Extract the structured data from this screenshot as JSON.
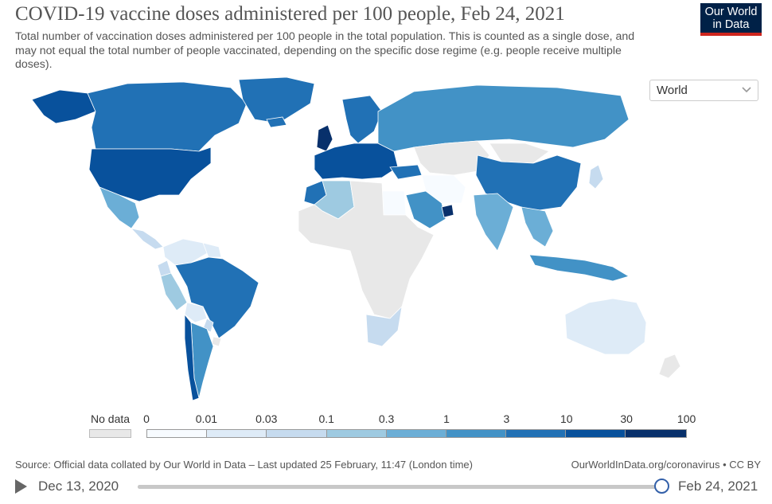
{
  "header": {
    "title": "COVID-19 vaccine doses administered per 100 people, Feb 24, 2021",
    "subtitle": "Total number of vaccination doses administered per 100 people in the total population. This is counted as a single dose, and may not equal the total number of people vaccinated, depending on the specific dose regime (e.g. people receive multiple doses).",
    "logo_line1": "Our World",
    "logo_line2": "in Data"
  },
  "region_select": {
    "value": "World",
    "icon": "chevron-down-icon"
  },
  "legend": {
    "no_data_label": "No data",
    "no_data_color": "#e8e8e8",
    "ticks": [
      "0",
      "0.01",
      "0.03",
      "0.1",
      "0.3",
      "1",
      "3",
      "10",
      "30",
      "100"
    ],
    "colors": [
      "#f7fbff",
      "#deebf7",
      "#c6dbef",
      "#9ecae1",
      "#6baed6",
      "#4292c6",
      "#2171b5",
      "#08519c",
      "#08306b"
    ]
  },
  "map": {
    "regions": [
      {
        "name": "Canada",
        "bin": 6
      },
      {
        "name": "Alaska",
        "bin": 7
      },
      {
        "name": "Greenland",
        "bin": 6
      },
      {
        "name": "United States",
        "bin": 7
      },
      {
        "name": "Mexico",
        "bin": 4
      },
      {
        "name": "Central America",
        "bin": 2
      },
      {
        "name": "Colombia / Venezuela",
        "bin": 1
      },
      {
        "name": "Ecuador",
        "bin": 2
      },
      {
        "name": "Peru",
        "bin": 3
      },
      {
        "name": "Brazil",
        "bin": 6
      },
      {
        "name": "Bolivia",
        "bin": 1
      },
      {
        "name": "Paraguay",
        "bin": 2
      },
      {
        "name": "Argentina",
        "bin": 5
      },
      {
        "name": "Chile",
        "bin": 7
      },
      {
        "name": "Uruguay",
        "bin": -1
      },
      {
        "name": "Guianas",
        "bin": 1
      },
      {
        "name": "Russia",
        "bin": 5
      },
      {
        "name": "Europe (West)",
        "bin": 7
      },
      {
        "name": "United Kingdom",
        "bin": 8
      },
      {
        "name": "Scandinavia",
        "bin": 6
      },
      {
        "name": "Iceland",
        "bin": 6
      },
      {
        "name": "Turkey",
        "bin": 6
      },
      {
        "name": "Kazakhstan / Central Asia",
        "bin": -1
      },
      {
        "name": "Iran",
        "bin": 0
      },
      {
        "name": "Saudi Arabia",
        "bin": 5
      },
      {
        "name": "Gulf States",
        "bin": 8
      },
      {
        "name": "India",
        "bin": 4
      },
      {
        "name": "China",
        "bin": 6
      },
      {
        "name": "Mongolia",
        "bin": -1
      },
      {
        "name": "Japan",
        "bin": 2
      },
      {
        "name": "Southeast Asia",
        "bin": 4
      },
      {
        "name": "Indonesia",
        "bin": 5
      },
      {
        "name": "Australia",
        "bin": 1
      },
      {
        "name": "New Zealand",
        "bin": -1
      },
      {
        "name": "Morocco",
        "bin": 6
      },
      {
        "name": "Algeria",
        "bin": 3
      },
      {
        "name": "Egypt",
        "bin": 0
      },
      {
        "name": "Sub-Saharan Africa",
        "bin": -1
      },
      {
        "name": "South Africa",
        "bin": 2
      }
    ]
  },
  "footer": {
    "source": "Source: Official data collated by Our World in Data – Last updated 25 February, 11:47 (London time)",
    "credit": "OurWorldInData.org/coronavirus • CC BY"
  },
  "timeline": {
    "start_label": "Dec 13, 2020",
    "end_label": "Feb 24, 2021",
    "progress": 1.0
  }
}
